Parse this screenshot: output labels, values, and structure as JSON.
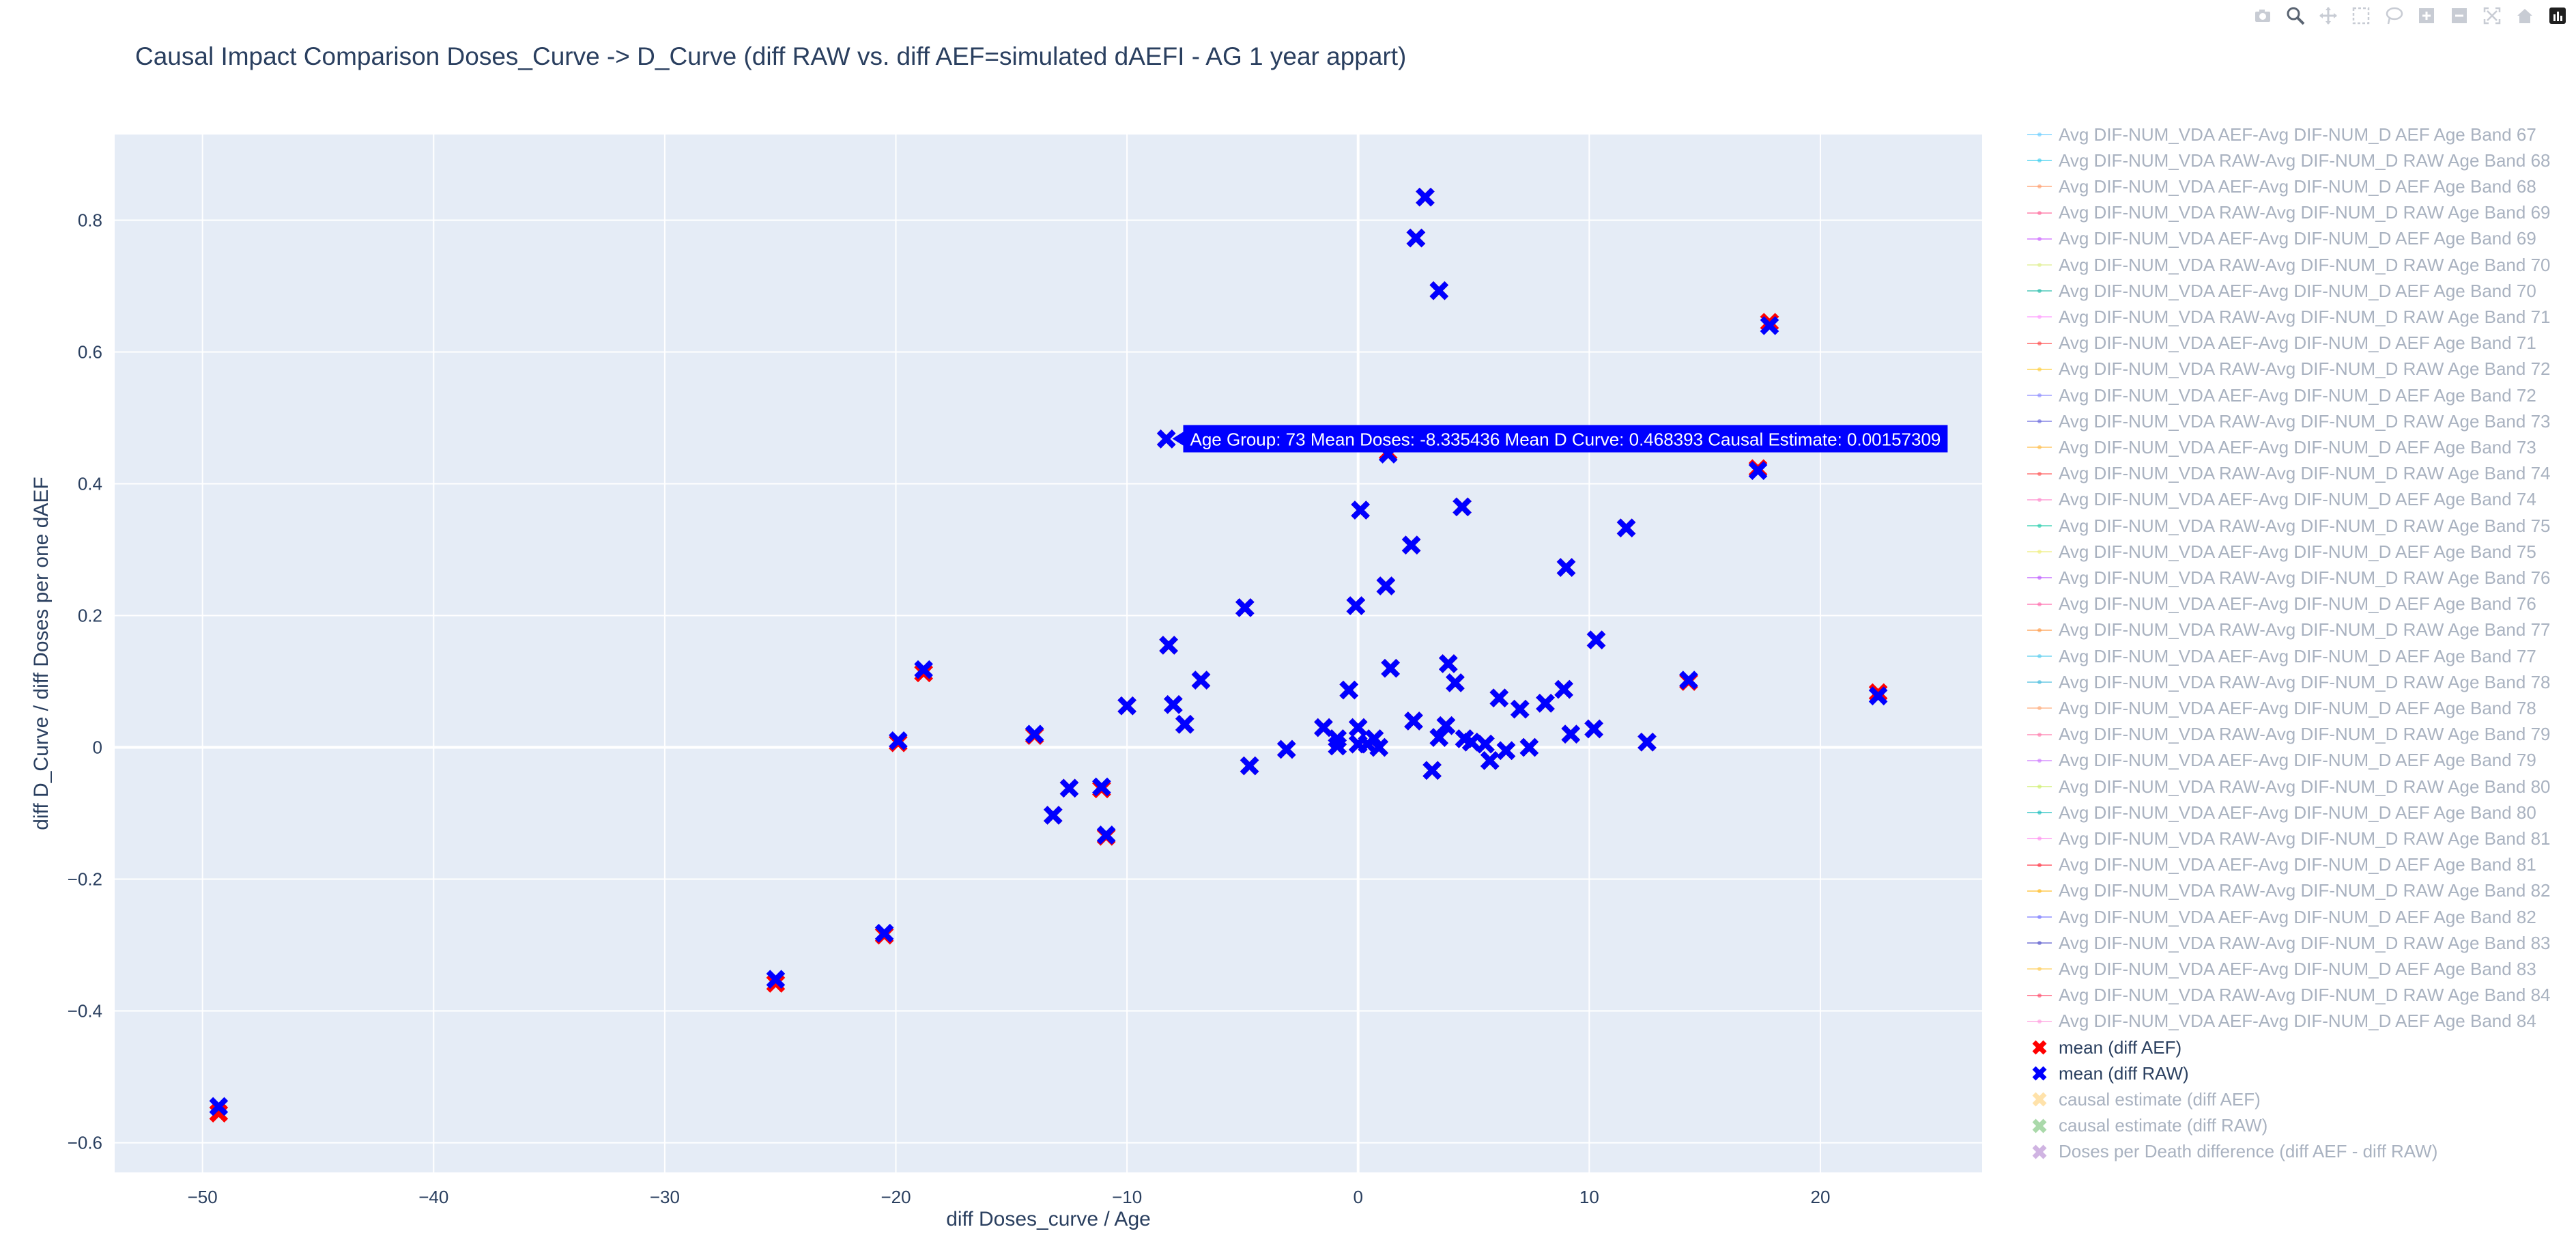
{
  "title": "Causal Impact Comparison Doses_Curve -> D_Curve (diff RAW vs. diff AEF=simulated dAEFI - AG 1 year appart)",
  "modebar": [
    "camera-icon",
    "zoom-icon",
    "pan-icon",
    "box-select-icon",
    "lasso-icon",
    "zoom-in-icon",
    "zoom-out-icon",
    "autoscale-icon",
    "reset-axes-icon",
    "plotly-logo-icon"
  ],
  "tooltip": {
    "text": "Age Group: 73 Mean Doses: -8.335436 Mean D Curve: 0.468393 Causal Estimate: 0.00157309",
    "x": -8.335436,
    "y": 0.468393,
    "bg": "#0000ff"
  },
  "legend": {
    "line_items": [
      {
        "label": "Avg DIF-NUM_VDA AEF-Avg DIF-NUM_D AEF Age Band 67",
        "color": "#66ccff"
      },
      {
        "label": "Avg DIF-NUM_VDA RAW-Avg DIF-NUM_D RAW Age Band 68",
        "color": "#33ccee"
      },
      {
        "label": "Avg DIF-NUM_VDA AEF-Avg DIF-NUM_D AEF Age Band 68",
        "color": "#ff9966"
      },
      {
        "label": "Avg DIF-NUM_VDA RAW-Avg DIF-NUM_D RAW Age Band 69",
        "color": "#ff6699"
      },
      {
        "label": "Avg DIF-NUM_VDA AEF-Avg DIF-NUM_D AEF Age Band 69",
        "color": "#cc66ff"
      },
      {
        "label": "Avg DIF-NUM_VDA RAW-Avg DIF-NUM_D RAW Age Band 70",
        "color": "#ddee88"
      },
      {
        "label": "Avg DIF-NUM_VDA AEF-Avg DIF-NUM_D AEF Age Band 70",
        "color": "#22bbaa"
      },
      {
        "label": "Avg DIF-NUM_VDA RAW-Avg DIF-NUM_D RAW Age Band 71",
        "color": "#ff99ff"
      },
      {
        "label": "Avg DIF-NUM_VDA AEF-Avg DIF-NUM_D AEF Age Band 71",
        "color": "#ff4444"
      },
      {
        "label": "Avg DIF-NUM_VDA RAW-Avg DIF-NUM_D RAW Age Band 72",
        "color": "#ffcc33"
      },
      {
        "label": "Avg DIF-NUM_VDA AEF-Avg DIF-NUM_D AEF Age Band 72",
        "color": "#8888ff"
      },
      {
        "label": "Avg DIF-NUM_VDA RAW-Avg DIF-NUM_D RAW Age Band 73",
        "color": "#6666dd"
      },
      {
        "label": "Avg DIF-NUM_VDA AEF-Avg DIF-NUM_D AEF Age Band 73",
        "color": "#ffbb44"
      },
      {
        "label": "Avg DIF-NUM_VDA RAW-Avg DIF-NUM_D RAW Age Band 74",
        "color": "#ff5555"
      },
      {
        "label": "Avg DIF-NUM_VDA AEF-Avg DIF-NUM_D AEF Age Band 74",
        "color": "#ff88cc"
      },
      {
        "label": "Avg DIF-NUM_VDA RAW-Avg DIF-NUM_D RAW Age Band 75",
        "color": "#22ccaa"
      },
      {
        "label": "Avg DIF-NUM_VDA AEF-Avg DIF-NUM_D AEF Age Band 75",
        "color": "#eeee77"
      },
      {
        "label": "Avg DIF-NUM_VDA RAW-Avg DIF-NUM_D RAW Age Band 76",
        "color": "#bb55ff"
      },
      {
        "label": "Avg DIF-NUM_VDA AEF-Avg DIF-NUM_D AEF Age Band 76",
        "color": "#ff66aa"
      },
      {
        "label": "Avg DIF-NUM_VDA RAW-Avg DIF-NUM_D RAW Age Band 77",
        "color": "#ff9944"
      },
      {
        "label": "Avg DIF-NUM_VDA AEF-Avg DIF-NUM_D AEF Age Band 77",
        "color": "#55ccee"
      },
      {
        "label": "Avg DIF-NUM_VDA RAW-Avg DIF-NUM_D RAW Age Band 78",
        "color": "#44bbdd"
      },
      {
        "label": "Avg DIF-NUM_VDA AEF-Avg DIF-NUM_D AEF Age Band 78",
        "color": "#ffaa77"
      },
      {
        "label": "Avg DIF-NUM_VDA RAW-Avg DIF-NUM_D RAW Age Band 79",
        "color": "#ff77aa"
      },
      {
        "label": "Avg DIF-NUM_VDA AEF-Avg DIF-NUM_D AEF Age Band 79",
        "color": "#cc77ff"
      },
      {
        "label": "Avg DIF-NUM_VDA RAW-Avg DIF-NUM_D RAW Age Band 80",
        "color": "#ccee66"
      },
      {
        "label": "Avg DIF-NUM_VDA AEF-Avg DIF-NUM_D AEF Age Band 80",
        "color": "#11bbbb"
      },
      {
        "label": "Avg DIF-NUM_VDA RAW-Avg DIF-NUM_D RAW Age Band 81",
        "color": "#ff88ee"
      },
      {
        "label": "Avg DIF-NUM_VDA AEF-Avg DIF-NUM_D AEF Age Band 81",
        "color": "#ff3344"
      },
      {
        "label": "Avg DIF-NUM_VDA RAW-Avg DIF-NUM_D RAW Age Band 82",
        "color": "#ffbb22"
      },
      {
        "label": "Avg DIF-NUM_VDA AEF-Avg DIF-NUM_D AEF Age Band 82",
        "color": "#7777ff"
      },
      {
        "label": "Avg DIF-NUM_VDA RAW-Avg DIF-NUM_D RAW Age Band 83",
        "color": "#5555cc"
      },
      {
        "label": "Avg DIF-NUM_VDA AEF-Avg DIF-NUM_D AEF Age Band 83",
        "color": "#ffcc55"
      },
      {
        "label": "Avg DIF-NUM_VDA RAW-Avg DIF-NUM_D RAW Age Band 84",
        "color": "#ff4466"
      },
      {
        "label": "Avg DIF-NUM_VDA AEF-Avg DIF-NUM_D AEF Age Band 84",
        "color": "#ff99dd"
      }
    ],
    "marker_items": [
      {
        "label": "mean (diff AEF)",
        "color": "#ff0000",
        "active": true
      },
      {
        "label": "mean (diff RAW)",
        "color": "#0000ff",
        "active": true
      },
      {
        "label": "causal estimate (diff AEF)",
        "color": "#ffcc66",
        "active": false
      },
      {
        "label": "causal estimate (diff RAW)",
        "color": "#66bb66",
        "active": false
      },
      {
        "label": "Doses per Death difference (diff AEF - diff RAW)",
        "color": "#aa77cc",
        "active": false
      }
    ]
  },
  "chart_data": {
    "type": "scatter",
    "title": "Causal Impact Comparison Doses_Curve -> D_Curve (diff RAW vs. diff AEF=simulated dAEFI - AG 1 year appart)",
    "xlabel": "diff Doses_curve / Age",
    "ylabel": "diff D_Curve / diff Doses per one dAEF",
    "xlim": [
      -53.8,
      27.0
    ],
    "ylim": [
      -0.645,
      0.93
    ],
    "xticks": [
      -50,
      -40,
      -30,
      -20,
      -10,
      0,
      10,
      20
    ],
    "yticks": [
      -0.6,
      -0.4,
      -0.2,
      0,
      0.2,
      0.4,
      0.6,
      0.8
    ],
    "grid": true,
    "legend_position": "right",
    "series": [
      {
        "name": "mean (diff AEF)",
        "color": "#ff0000",
        "marker": "x",
        "points": [
          [
            -49.3,
            -0.555
          ],
          [
            -25.2,
            -0.358
          ],
          [
            -20.5,
            -0.285
          ],
          [
            -19.9,
            0.007
          ],
          [
            -18.8,
            0.113
          ],
          [
            -14.0,
            0.018
          ],
          [
            -13.2,
            -0.103
          ],
          [
            -12.5,
            -0.062
          ],
          [
            -11.1,
            -0.063
          ],
          [
            -10.9,
            -0.135
          ],
          [
            -10.0,
            0.063
          ],
          [
            -8.3,
            0.468
          ],
          [
            -8.2,
            0.155
          ],
          [
            -8.0,
            0.065
          ],
          [
            -7.5,
            0.035
          ],
          [
            -6.8,
            0.102
          ],
          [
            -4.9,
            0.212
          ],
          [
            -4.7,
            -0.028
          ],
          [
            -3.1,
            -0.003
          ],
          [
            -1.5,
            0.03
          ],
          [
            -0.9,
            0.002
          ],
          [
            -0.9,
            0.013
          ],
          [
            -0.4,
            0.087
          ],
          [
            -0.1,
            0.215
          ],
          [
            0.0,
            0.005
          ],
          [
            0.0,
            0.03
          ],
          [
            0.1,
            0.36
          ],
          [
            0.4,
            0.005
          ],
          [
            0.7,
            0.013
          ],
          [
            0.9,
            0.0
          ],
          [
            1.2,
            0.245
          ],
          [
            1.3,
            0.448
          ],
          [
            1.4,
            0.12
          ],
          [
            2.3,
            0.307
          ],
          [
            2.4,
            0.04
          ],
          [
            2.5,
            0.773
          ],
          [
            2.9,
            0.835
          ],
          [
            3.2,
            -0.035
          ],
          [
            3.5,
            0.693
          ],
          [
            3.5,
            0.015
          ],
          [
            3.8,
            0.033
          ],
          [
            3.9,
            0.127
          ],
          [
            4.2,
            0.098
          ],
          [
            4.5,
            0.365
          ],
          [
            4.6,
            0.013
          ],
          [
            4.9,
            0.008
          ],
          [
            5.5,
            0.005
          ],
          [
            5.7,
            -0.02
          ],
          [
            6.1,
            0.075
          ],
          [
            6.4,
            -0.005
          ],
          [
            7.0,
            0.058
          ],
          [
            7.4,
            0.0
          ],
          [
            8.1,
            0.067
          ],
          [
            8.9,
            0.088
          ],
          [
            9.0,
            0.273
          ],
          [
            9.2,
            0.02
          ],
          [
            10.2,
            0.028
          ],
          [
            10.3,
            0.163
          ],
          [
            11.6,
            0.333
          ],
          [
            12.5,
            0.008
          ],
          [
            14.3,
            0.1
          ],
          [
            17.3,
            0.423
          ],
          [
            17.8,
            0.645
          ],
          [
            22.5,
            0.083
          ]
        ]
      },
      {
        "name": "mean (diff RAW)",
        "color": "#0000ff",
        "marker": "x",
        "points": [
          [
            -49.3,
            -0.545
          ],
          [
            -25.2,
            -0.352
          ],
          [
            -20.5,
            -0.282
          ],
          [
            -19.9,
            0.01
          ],
          [
            -18.8,
            0.118
          ],
          [
            -14.0,
            0.02
          ],
          [
            -13.2,
            -0.103
          ],
          [
            -12.5,
            -0.062
          ],
          [
            -11.1,
            -0.06
          ],
          [
            -10.9,
            -0.133
          ],
          [
            -10.0,
            0.063
          ],
          [
            -8.3,
            0.468
          ],
          [
            -8.2,
            0.155
          ],
          [
            -8.0,
            0.065
          ],
          [
            -7.5,
            0.035
          ],
          [
            -6.8,
            0.102
          ],
          [
            -4.9,
            0.212
          ],
          [
            -4.7,
            -0.028
          ],
          [
            -3.1,
            -0.003
          ],
          [
            -1.5,
            0.03
          ],
          [
            -0.9,
            0.002
          ],
          [
            -0.9,
            0.013
          ],
          [
            -0.4,
            0.087
          ],
          [
            -0.1,
            0.215
          ],
          [
            0.0,
            0.005
          ],
          [
            0.0,
            0.03
          ],
          [
            0.1,
            0.36
          ],
          [
            0.4,
            0.005
          ],
          [
            0.7,
            0.013
          ],
          [
            0.9,
            0.0
          ],
          [
            1.2,
            0.245
          ],
          [
            1.3,
            0.445
          ],
          [
            1.4,
            0.12
          ],
          [
            2.3,
            0.307
          ],
          [
            2.4,
            0.04
          ],
          [
            2.5,
            0.773
          ],
          [
            2.9,
            0.835
          ],
          [
            3.2,
            -0.035
          ],
          [
            3.5,
            0.693
          ],
          [
            3.5,
            0.015
          ],
          [
            3.8,
            0.033
          ],
          [
            3.9,
            0.127
          ],
          [
            4.2,
            0.098
          ],
          [
            4.5,
            0.365
          ],
          [
            4.6,
            0.013
          ],
          [
            4.9,
            0.008
          ],
          [
            5.5,
            0.005
          ],
          [
            5.7,
            -0.02
          ],
          [
            6.1,
            0.075
          ],
          [
            6.4,
            -0.005
          ],
          [
            7.0,
            0.058
          ],
          [
            7.4,
            0.0
          ],
          [
            8.1,
            0.067
          ],
          [
            8.9,
            0.088
          ],
          [
            9.0,
            0.273
          ],
          [
            9.2,
            0.02
          ],
          [
            10.2,
            0.028
          ],
          [
            10.3,
            0.163
          ],
          [
            11.6,
            0.333
          ],
          [
            12.5,
            0.008
          ],
          [
            14.3,
            0.102
          ],
          [
            17.3,
            0.42
          ],
          [
            17.8,
            0.64
          ],
          [
            22.5,
            0.078
          ]
        ]
      }
    ]
  }
}
